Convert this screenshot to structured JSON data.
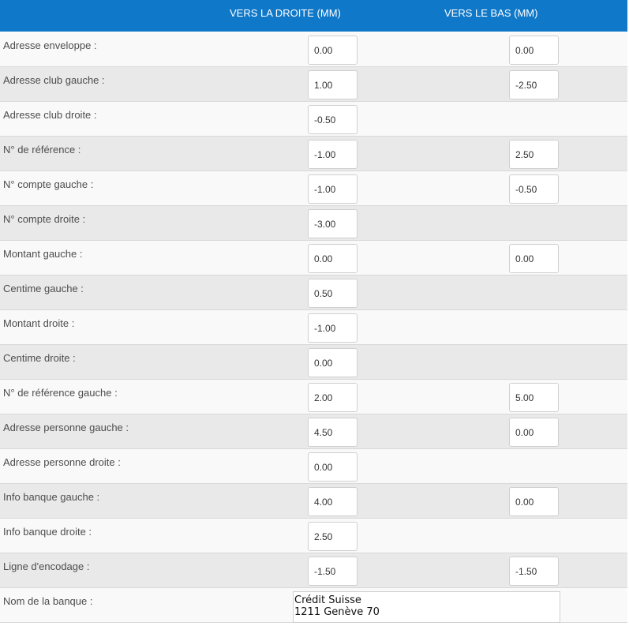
{
  "header": {
    "col_right_label": "VERS LA DROITE (MM)",
    "col_down_label": "VERS LE BAS (MM)"
  },
  "colors": {
    "header_bg": "#1078c8",
    "row_odd": "#f9f9f9",
    "row_even": "#e9e9e9"
  },
  "rows": [
    {
      "label": "Adresse enveloppe :",
      "right": "0.00",
      "down": "0.00"
    },
    {
      "label": "Adresse club gauche :",
      "right": "1.00",
      "down": "-2.50"
    },
    {
      "label": "Adresse club droite :",
      "right": "-0.50"
    },
    {
      "label": "N° de référence :",
      "right": "-1.00",
      "down": "2.50"
    },
    {
      "label": "N° compte gauche :",
      "right": "-1.00",
      "down": "-0.50"
    },
    {
      "label": "N° compte droite :",
      "right": "-3.00"
    },
    {
      "label": "Montant gauche :",
      "right": "0.00",
      "down": "0.00"
    },
    {
      "label": "Centime gauche :",
      "right": "0.50"
    },
    {
      "label": "Montant droite :",
      "right": "-1.00"
    },
    {
      "label": "Centime droite :",
      "right": "0.00"
    },
    {
      "label": "N° de référence gauche :",
      "right": "2.00",
      "down": "5.00"
    },
    {
      "label": "Adresse personne gauche :",
      "right": "4.50",
      "down": "0.00"
    },
    {
      "label": "Adresse personne droite :",
      "right": "0.00"
    },
    {
      "label": "Info banque gauche :",
      "right": "4.00",
      "down": "0.00"
    },
    {
      "label": "Info banque droite :",
      "right": "2.50"
    },
    {
      "label": "Ligne d'encodage :",
      "right": "-1.50",
      "down": "-1.50"
    },
    {
      "label": "Nom de la banque :"
    }
  ],
  "bank": {
    "label": "Nom de la banque :",
    "value": "Crédit Suisse\n1211 Genève 70"
  }
}
